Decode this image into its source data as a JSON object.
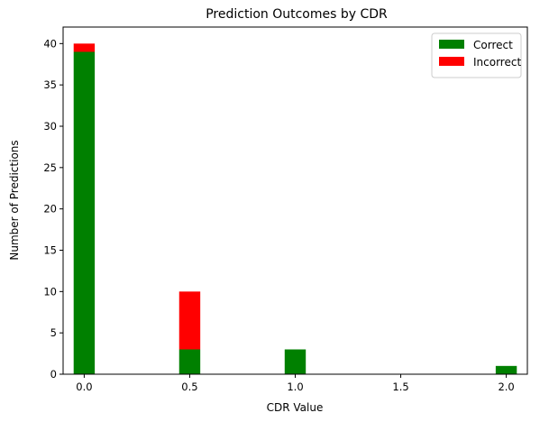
{
  "chart_data": {
    "type": "bar",
    "stacked": true,
    "title": "Prediction Outcomes by CDR",
    "xlabel": "CDR Value",
    "ylabel": "Number of Predictions",
    "x": [
      0.0,
      0.5,
      1.0,
      2.0
    ],
    "series": [
      {
        "name": "Correct",
        "color": "#008000",
        "values": [
          39,
          3,
          3,
          1
        ]
      },
      {
        "name": "Incorrect",
        "color": "#ff0000",
        "values": [
          1,
          7,
          0,
          0
        ]
      }
    ],
    "bar_width": 0.1,
    "xlim": [
      -0.1,
      2.1
    ],
    "ylim": [
      0,
      42
    ],
    "xticks": [
      0.0,
      0.5,
      1.0,
      1.5,
      2.0
    ],
    "xtick_labels": [
      "0.0",
      "0.5",
      "1.0",
      "1.5",
      "2.0"
    ],
    "yticks": [
      0,
      5,
      10,
      15,
      20,
      25,
      30,
      35,
      40
    ],
    "ytick_labels": [
      "0",
      "5",
      "10",
      "15",
      "20",
      "25",
      "30",
      "35",
      "40"
    ],
    "grid": false,
    "legend_position": "top-right"
  }
}
